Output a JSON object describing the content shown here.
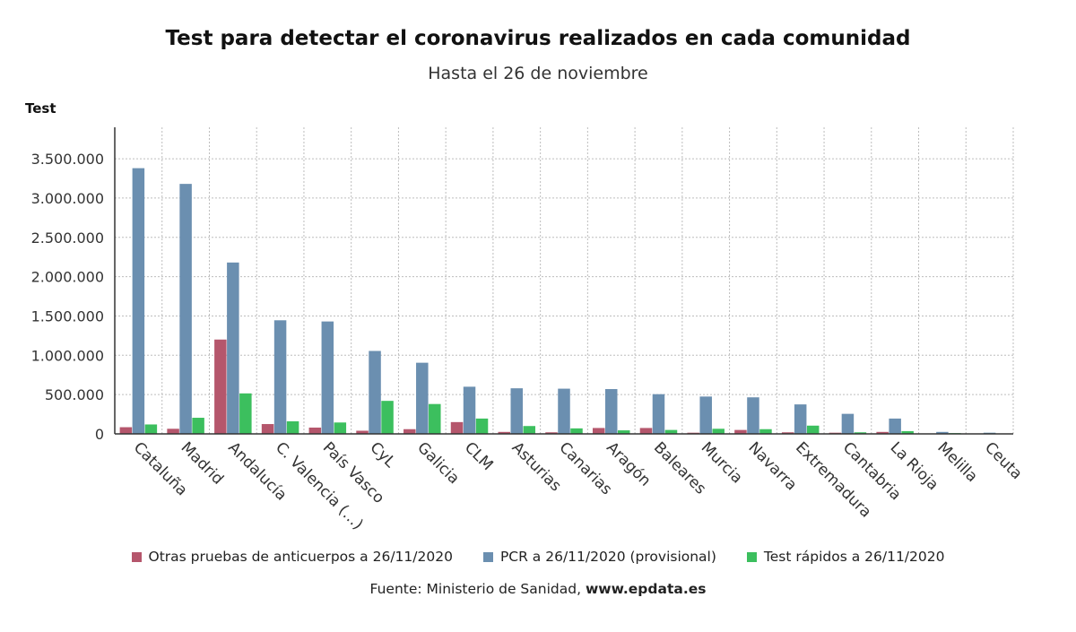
{
  "chart_data": {
    "type": "bar",
    "title": "Test para detectar el coronavirus realizados en cada comunidad",
    "subtitle": "Hasta el 26 de noviembre",
    "ylabel": "Test",
    "ylim": [
      0,
      3900000
    ],
    "yticks": [
      0,
      500000,
      1000000,
      1500000,
      2000000,
      2500000,
      3000000,
      3500000
    ],
    "ytick_labels": [
      "0",
      "500.000",
      "1.000.000",
      "1.500.000",
      "2.000.000",
      "2.500.000",
      "3.000.000",
      "3.500.000"
    ],
    "grid": true,
    "legend_position": "bottom",
    "categories": [
      "Cataluña",
      "Madrid",
      "Andalucía",
      "C. Valencia (…)",
      "País Vasco",
      "CyL",
      "Galicia",
      "CLM",
      "Asturias",
      "Canarias",
      "Aragón",
      "Baleares",
      "Murcia",
      "Navarra",
      "Extremadura",
      "Cantabria",
      "La Rioja",
      "Melilla",
      "Ceuta"
    ],
    "series": [
      {
        "name": "Otras pruebas de anticuerpos a 26/11/2020",
        "color": "#b5566c",
        "values": [
          85000,
          65000,
          1200000,
          125000,
          80000,
          40000,
          60000,
          150000,
          25000,
          20000,
          75000,
          75000,
          15000,
          50000,
          20000,
          15000,
          25000,
          3000,
          2000
        ]
      },
      {
        "name": "PCR a 26/11/2020 (provisional)",
        "color": "#6b8fb0",
        "values": [
          3380000,
          3180000,
          2180000,
          1445000,
          1430000,
          1055000,
          905000,
          600000,
          580000,
          575000,
          570000,
          505000,
          475000,
          465000,
          375000,
          255000,
          195000,
          25000,
          15000
        ]
      },
      {
        "name": "Test rápidos a 26/11/2020",
        "color": "#3cbf5e",
        "values": [
          120000,
          205000,
          515000,
          160000,
          145000,
          420000,
          380000,
          195000,
          100000,
          70000,
          45000,
          50000,
          65000,
          60000,
          105000,
          20000,
          35000,
          10000,
          5000
        ]
      }
    ]
  },
  "source": {
    "prefix": "Fuente: Ministerio de Sanidad, ",
    "site": "www.epdata.es"
  }
}
